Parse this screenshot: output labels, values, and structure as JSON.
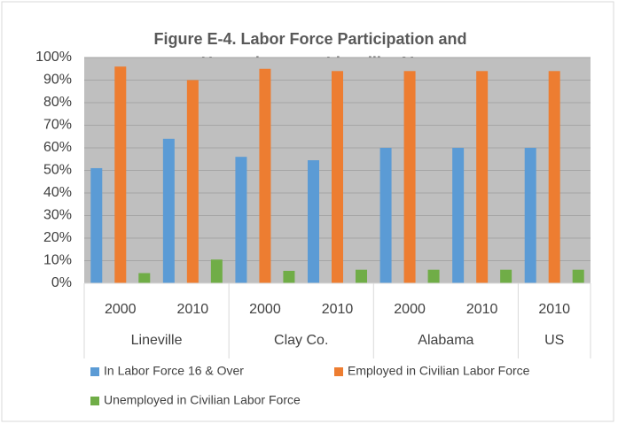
{
  "chart_data": {
    "type": "bar",
    "title": [
      "Figure E-4. Labor Force Participation and",
      "Unemployment: Lineville, AL"
    ],
    "groups": [
      {
        "label": "Lineville",
        "categories": [
          "2000",
          "2010"
        ]
      },
      {
        "label": "Clay Co.",
        "categories": [
          "2000",
          "2010"
        ]
      },
      {
        "label": "Alabama",
        "categories": [
          "2000",
          "2010"
        ]
      },
      {
        "label": "US",
        "categories": [
          "2010"
        ]
      }
    ],
    "series": [
      {
        "name": "In Labor Force 16 & Over",
        "color": "#5b9bd5",
        "values": [
          51,
          64,
          56,
          54.5,
          60,
          60,
          60
        ]
      },
      {
        "name": "Employed in Civilian Labor Force",
        "color": "#ed7d31",
        "values": [
          96,
          90,
          95,
          94,
          94,
          94,
          94
        ]
      },
      {
        "name": "Unemployed in Civilian Labor Force",
        "color": "#70ad47",
        "values": [
          4.5,
          10.5,
          5.5,
          6,
          6,
          6,
          6
        ]
      }
    ],
    "ylim": [
      0,
      100
    ],
    "yticks": [
      {
        "value": 0,
        "label": "0%"
      },
      {
        "value": 10,
        "label": "10%"
      },
      {
        "value": 20,
        "label": "20%"
      },
      {
        "value": 30,
        "label": "30%"
      },
      {
        "value": 40,
        "label": "40%"
      },
      {
        "value": 50,
        "label": "50%"
      },
      {
        "value": 60,
        "label": "60%"
      },
      {
        "value": 70,
        "label": "70%"
      },
      {
        "value": 80,
        "label": "80%"
      },
      {
        "value": 90,
        "label": "90%"
      },
      {
        "value": 100,
        "label": "100%"
      }
    ],
    "legend": "bottom"
  }
}
